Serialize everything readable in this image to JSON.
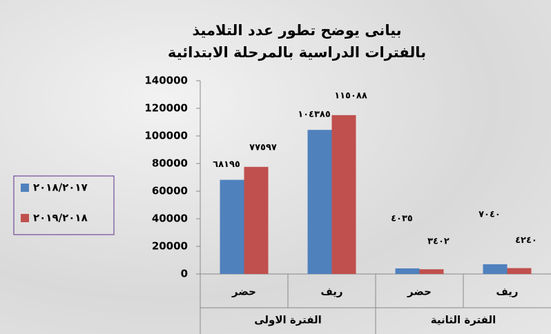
{
  "chart_data": {
    "type": "bar",
    "title": "بيانى يوضح تطور عدد التلاميذ بالفترات الدراسية بالمرحلة الابتدائية",
    "groups": [
      "الفترة الاولى",
      "الفترة الثانية"
    ],
    "categories": [
      "حضر",
      "ريف",
      "حضر",
      "ريف"
    ],
    "series": [
      {
        "name": "٢٠١٨/٢٠١٧",
        "color": "#4f81bd",
        "values": [
          68195,
          104385,
          4035,
          7040
        ],
        "value_labels": [
          "٦٨١٩٥",
          "١٠٤٣٨٥",
          "٤٠٣٥",
          "٧٠٤٠"
        ]
      },
      {
        "name": "٢٠١٩/٢٠١٨",
        "color": "#c0504d",
        "values": [
          77597,
          115088,
          3402,
          4240
        ],
        "value_labels": [
          "٧٧٥٩٧",
          "١١٥٠٨٨",
          "٣٤٠٢",
          "٤٢٤٠"
        ]
      }
    ],
    "ylim": [
      0,
      140000
    ],
    "yticks": [
      0,
      20000,
      40000,
      60000,
      80000,
      100000,
      120000,
      140000
    ],
    "legend": "left"
  }
}
